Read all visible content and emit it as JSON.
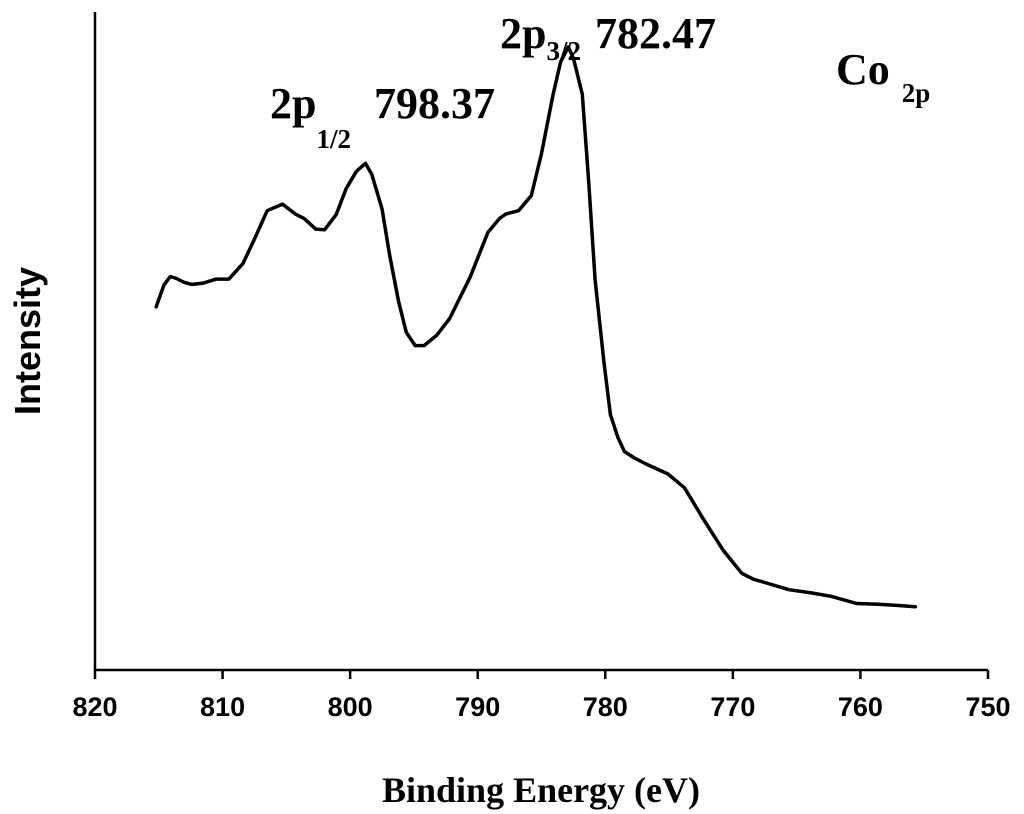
{
  "chart_data": {
    "type": "line",
    "title": "",
    "xlabel": "Binding Energy (eV)",
    "ylabel": "Intensity",
    "xlim": [
      820,
      750
    ],
    "ylim": [
      0,
      100
    ],
    "x_reversed": true,
    "xticks": [
      820,
      810,
      800,
      790,
      780,
      770,
      760,
      750
    ],
    "grid": false,
    "legend": "none",
    "line_color": "#000000",
    "series": [
      {
        "x": [
          815.2,
          814.6,
          814.1,
          813.6,
          813.0,
          812.4,
          811.5,
          810.5,
          809.5,
          808.4,
          807.5,
          806.5,
          805.3,
          804.3,
          803.6,
          802.7,
          802.0,
          801.1,
          800.3,
          799.5,
          798.8,
          798.3,
          797.5,
          796.9,
          796.2,
          795.6,
          794.9,
          794.2,
          793.2,
          792.2,
          790.6,
          789.2,
          788.3,
          787.8,
          786.8,
          785.8,
          785.0,
          784.1,
          783.5,
          782.9,
          782.5,
          781.8,
          781.3,
          780.8,
          780.1,
          779.6,
          779.0,
          778.5,
          777.7,
          776.8,
          775.1,
          773.8,
          772.3,
          770.8,
          769.3,
          768.4,
          767.5,
          765.6,
          763.8,
          762.3,
          760.3,
          758.6,
          757.0,
          755.7
        ],
        "y": [
          55.2,
          58.5,
          59.8,
          59.5,
          58.9,
          58.6,
          58.8,
          59.4,
          59.4,
          61.8,
          65.5,
          69.8,
          70.8,
          69.3,
          68.6,
          67.0,
          66.9,
          69.2,
          73.2,
          75.8,
          77.0,
          75.3,
          70.1,
          63.0,
          56.0,
          51.3,
          49.3,
          49.3,
          50.9,
          53.4,
          59.7,
          66.5,
          68.6,
          69.3,
          69.8,
          72.1,
          78.5,
          87.4,
          92.4,
          94.7,
          93.0,
          87.5,
          74.2,
          59.3,
          46.7,
          38.8,
          35.3,
          33.2,
          32.2,
          31.3,
          29.8,
          27.7,
          22.9,
          18.3,
          14.7,
          13.8,
          13.3,
          12.2,
          11.7,
          11.2,
          10.1,
          10.0,
          9.8,
          9.6
        ]
      }
    ],
    "annotations": {
      "peak_right": {
        "label_main": "2p",
        "label_sub": "3/2",
        "value": "782.47"
      },
      "peak_left": {
        "label_main": "2p",
        "label_sub": "1/2",
        "value": "798.37"
      },
      "element": {
        "label_main": "Co",
        "label_sub": "2p"
      }
    }
  }
}
